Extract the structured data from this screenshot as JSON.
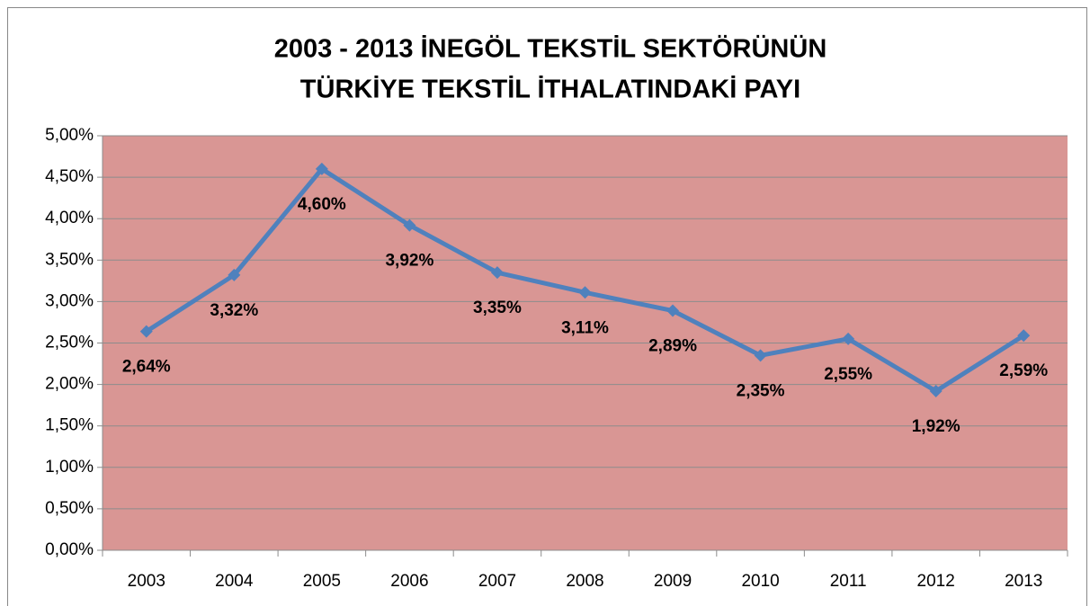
{
  "chart_data": {
    "type": "line",
    "title": [
      "2003 - 2013 İNEGÖL TEKSTİL SEKTÖRÜNÜN",
      "TÜRKİYE TEKSTİL İTHALATINDAKİ PAYI"
    ],
    "categories": [
      "2003",
      "2004",
      "2005",
      "2006",
      "2007",
      "2008",
      "2009",
      "2010",
      "2011",
      "2012",
      "2013"
    ],
    "series": [
      {
        "color": "#4f81bd",
        "values": [
          2.64,
          3.32,
          4.6,
          3.92,
          3.35,
          3.11,
          2.89,
          2.35,
          2.55,
          1.92,
          2.59
        ],
        "value_labels": [
          "2,64%",
          "3,32%",
          "4,60%",
          "3,92%",
          "3,35%",
          "3,11%",
          "2,89%",
          "2,35%",
          "2,55%",
          "1,92%",
          "2,59%"
        ]
      }
    ],
    "ylim": [
      0,
      5
    ],
    "yticks": [
      {
        "value": 0,
        "label": "0,00%"
      },
      {
        "value": 0.5,
        "label": "0,50%"
      },
      {
        "value": 1,
        "label": "1,00%"
      },
      {
        "value": 1.5,
        "label": "1,50%"
      },
      {
        "value": 2,
        "label": "2,00%"
      },
      {
        "value": 2.5,
        "label": "2,50%"
      },
      {
        "value": 3,
        "label": "3,00%"
      },
      {
        "value": 3.5,
        "label": "3,50%"
      },
      {
        "value": 4,
        "label": "4,00%"
      },
      {
        "value": 4.5,
        "label": "4,50%"
      },
      {
        "value": 5,
        "label": "5,00%"
      }
    ],
    "grid": true,
    "plot_background": "#d99694"
  }
}
